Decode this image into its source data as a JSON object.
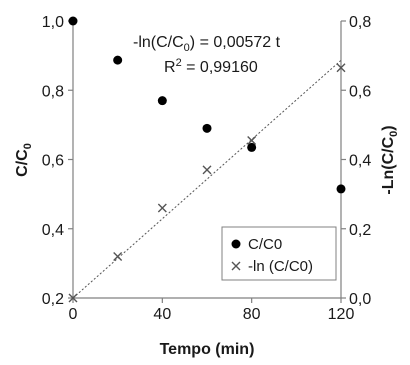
{
  "chart_data": {
    "type": "scatter",
    "xlabel": "Tempo (min)",
    "ylabel_left_main": "C/C",
    "ylabel_left_sub": "0",
    "ylabel_right_main": "-Ln(C/C",
    "ylabel_right_sub": "0",
    "ylabel_right_end": ")",
    "x_ticks": [
      0,
      40,
      80,
      120
    ],
    "x_tick_labels": [
      "0",
      "40",
      "80",
      "120"
    ],
    "xlim": [
      0,
      120
    ],
    "y_left_ticks": [
      0.2,
      0.4,
      0.6,
      0.8,
      1.0
    ],
    "y_left_tick_labels": [
      "0,2",
      "0,4",
      "0,6",
      "0,8",
      "1,0"
    ],
    "y_left_lim": [
      0.2,
      1.0
    ],
    "y_right_ticks": [
      0.0,
      0.2,
      0.4,
      0.6,
      0.8
    ],
    "y_right_tick_labels": [
      "0,0",
      "0,2",
      "0,4",
      "0,6",
      "0,8"
    ],
    "y_right_lim": [
      0.0,
      0.8
    ],
    "grid": false,
    "legend_position": "bottom-right",
    "series": [
      {
        "name": "C/C0",
        "axis": "left",
        "marker": "circle",
        "color": "#000000",
        "x": [
          0,
          20,
          40,
          60,
          80,
          120
        ],
        "y": [
          1.0,
          0.887,
          0.77,
          0.69,
          0.635,
          0.515
        ]
      },
      {
        "name": "-ln (C/C0)",
        "axis": "right",
        "marker": "x",
        "color": "#555555",
        "x": [
          0,
          20,
          40,
          60,
          80,
          120
        ],
        "y": [
          0.0,
          0.12,
          0.26,
          0.37,
          0.455,
          0.665
        ]
      }
    ],
    "fit_line": {
      "axis": "right",
      "slope": 0.00572,
      "x": [
        0,
        120
      ],
      "style": "dotted",
      "color": "#555555"
    },
    "annotations": {
      "equation_prefix": "-ln(C/C",
      "equation_sub": "0",
      "equation_suffix": ") = 0,00572  t",
      "r2_prefix": "R",
      "r2_sup": "2",
      "r2_suffix": " = 0,99160"
    }
  }
}
